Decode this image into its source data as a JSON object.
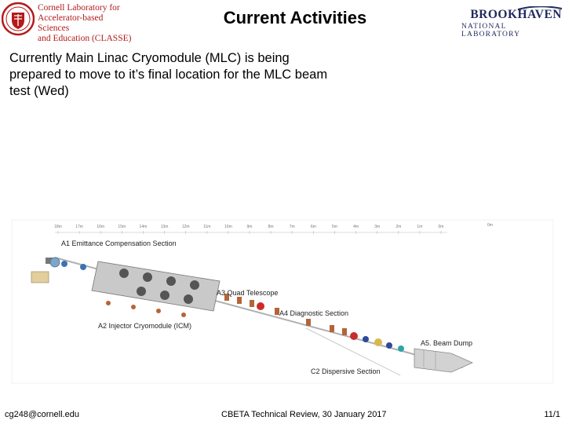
{
  "header": {
    "cornell_logo": {
      "line1": "Cornell Laboratory for",
      "line2": "Accelerator-based Sciences",
      "line3": "and Education (CLASSE)"
    },
    "title": "Current Activities",
    "bnl_logo": {
      "name": "BROOKHAVEN",
      "sub": "NATIONAL LABORATORY"
    }
  },
  "body": {
    "text": "Currently Main Linac Cryomodule (MLC) is being prepared to move to it’s final location for the MLC beam test (Wed)"
  },
  "figure": {
    "ruler_labels": [
      "18m",
      "17m",
      "16m",
      "15m",
      "14m",
      "13m",
      "12m",
      "11m",
      "10m",
      "9m",
      "8m",
      "7m",
      "6m",
      "5m",
      "4m",
      "3m",
      "2m",
      "1m",
      "0m"
    ],
    "ruler_end": "0m",
    "section_labels": {
      "a1": "A1 Emittance Compensation Section",
      "a2": "A2 Injector Cryomodule (ICM)",
      "a3": "A3 Quad Telescope",
      "a4": "A4 Diagnostic Section",
      "a5": "A5. Beam Dump",
      "c2": "C2 Dispersive Section"
    }
  },
  "footer": {
    "email": "cg248@cornell.edu",
    "event": "CBETA Technical Review, 30 January 2017",
    "page": "11/1"
  }
}
